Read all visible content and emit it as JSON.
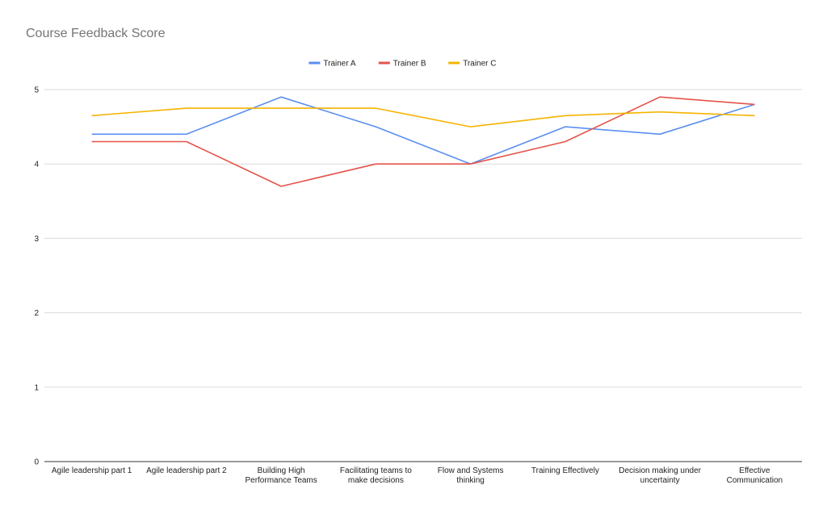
{
  "chart_data": {
    "type": "line",
    "title": "Course Feedback Score",
    "xlabel": "",
    "ylabel": "",
    "categories": [
      [
        "Agile leadership part 1"
      ],
      [
        "Agile leadership part 2"
      ],
      [
        "Building High",
        "Performance Teams"
      ],
      [
        "Facilitating teams to",
        "make decisions"
      ],
      [
        "Flow and Systems",
        "thinking"
      ],
      [
        "Training Effectively"
      ],
      [
        "Decision making under",
        "uncertainty"
      ],
      [
        "Effective",
        "Communication"
      ]
    ],
    "ylim": [
      0,
      5
    ],
    "yticks": [
      0,
      1,
      2,
      3,
      4,
      5
    ],
    "grid": true,
    "legend_position": "top",
    "series": [
      {
        "name": "Trainer A",
        "color": "#5b8ff0",
        "values": [
          4.4,
          4.4,
          4.9,
          4.5,
          4.0,
          4.5,
          4.4,
          4.8
        ]
      },
      {
        "name": "Trainer B",
        "color": "#e5534b",
        "values": [
          4.3,
          4.3,
          3.7,
          4.0,
          4.0,
          4.3,
          4.9,
          4.8
        ]
      },
      {
        "name": "Trainer C",
        "color": "#f4b400",
        "values": [
          4.65,
          4.75,
          4.75,
          4.75,
          4.5,
          4.65,
          4.7,
          4.65
        ]
      }
    ]
  }
}
